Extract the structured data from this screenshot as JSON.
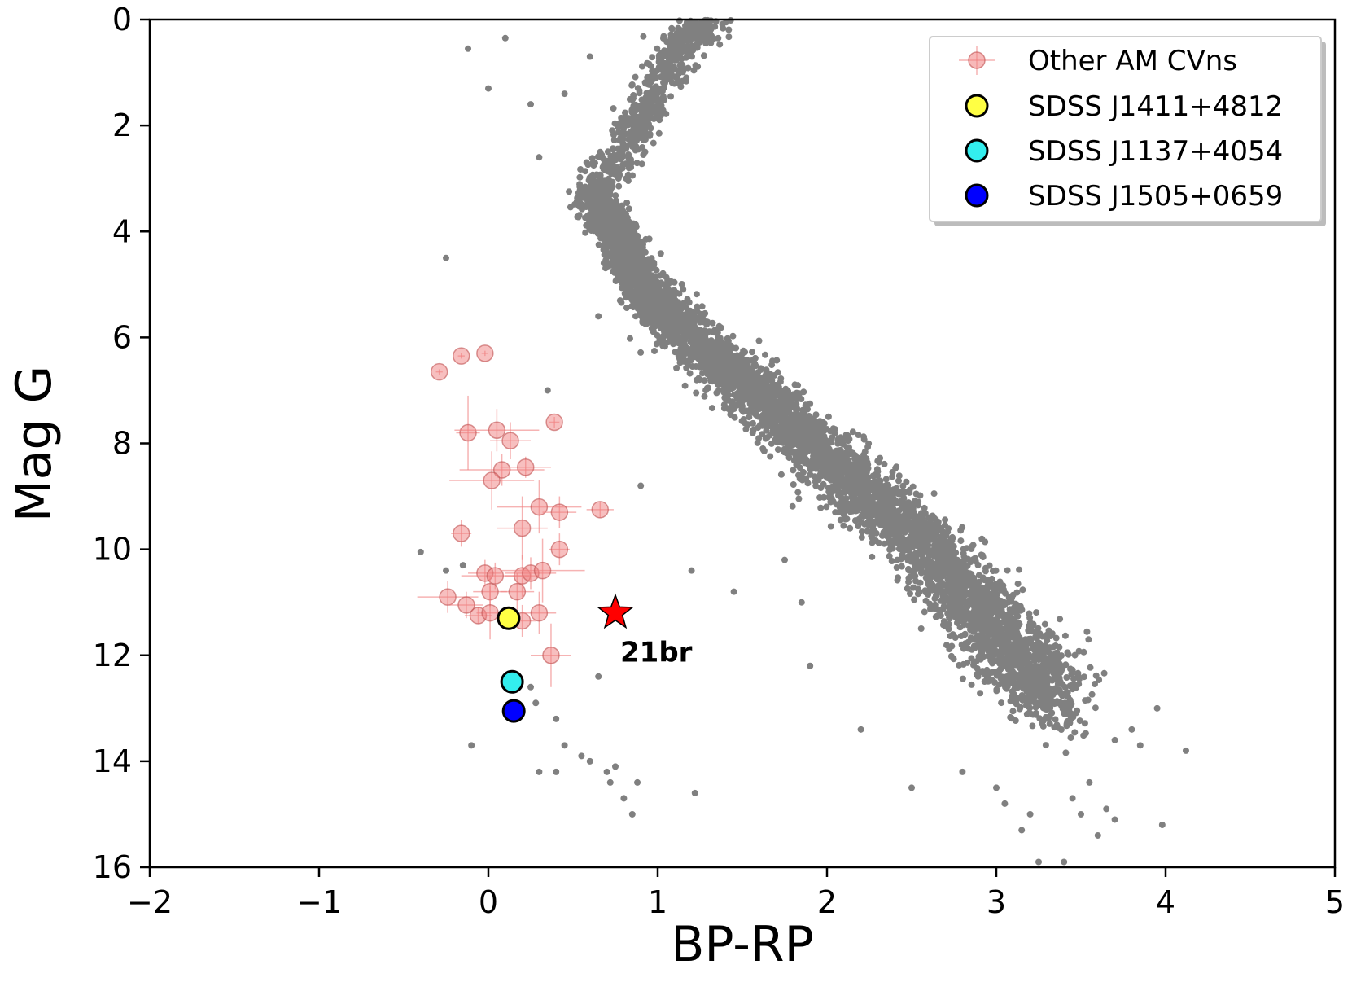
{
  "chart_data": {
    "type": "scatter",
    "xlabel": "BP-RP",
    "ylabel": "Mag G",
    "xlim": [
      -2,
      5
    ],
    "ylim": [
      16,
      0
    ],
    "y_inverted": true,
    "grid": false,
    "x_ticks": [
      "−2",
      "−1",
      "0",
      "1",
      "2",
      "3",
      "4",
      "5"
    ],
    "y_ticks": [
      "0",
      "2",
      "4",
      "6",
      "8",
      "10",
      "12",
      "14",
      "16"
    ],
    "legend_position": "top-right",
    "background_sequence": {
      "color": "#808080",
      "main_sequence_ridge": [
        [
          0.6,
          3.2
        ],
        [
          0.75,
          4.0
        ],
        [
          0.9,
          5.0
        ],
        [
          1.1,
          5.7
        ],
        [
          1.4,
          6.6
        ],
        [
          1.7,
          7.4
        ],
        [
          2.0,
          8.3
        ],
        [
          2.3,
          9.1
        ],
        [
          2.6,
          10.0
        ],
        [
          2.85,
          11.0
        ],
        [
          3.1,
          12.0
        ],
        [
          3.4,
          13.0
        ]
      ],
      "giant_branch": [
        [
          0.62,
          3.3
        ],
        [
          0.85,
          2.2
        ],
        [
          1.0,
          1.2
        ],
        [
          1.15,
          0.4
        ],
        [
          1.3,
          0.0
        ]
      ],
      "isolated_points": [
        [
          -0.12,
          0.55
        ],
        [
          0.1,
          0.35
        ],
        [
          0.0,
          1.3
        ],
        [
          0.45,
          1.4
        ],
        [
          0.6,
          0.7
        ],
        [
          0.25,
          1.6
        ],
        [
          0.3,
          2.6
        ],
        [
          -0.25,
          4.5
        ],
        [
          0.65,
          5.6
        ],
        [
          0.35,
          7.0
        ],
        [
          0.9,
          8.8
        ],
        [
          -0.4,
          10.05
        ],
        [
          -0.15,
          10.3
        ],
        [
          -0.25,
          10.4
        ],
        [
          1.2,
          10.4
        ],
        [
          1.45,
          10.8
        ],
        [
          1.75,
          10.2
        ],
        [
          1.85,
          11.0
        ],
        [
          1.9,
          12.2
        ],
        [
          0.65,
          12.4
        ],
        [
          0.25,
          12.6
        ],
        [
          0.28,
          12.9
        ],
        [
          0.4,
          13.2
        ],
        [
          -0.1,
          13.7
        ],
        [
          0.45,
          13.7
        ],
        [
          0.55,
          13.9
        ],
        [
          0.6,
          14.0
        ],
        [
          0.3,
          14.2
        ],
        [
          0.4,
          14.2
        ],
        [
          0.7,
          14.2
        ],
        [
          0.75,
          14.1
        ],
        [
          0.72,
          14.4
        ],
        [
          0.8,
          14.7
        ],
        [
          0.88,
          14.4
        ],
        [
          0.85,
          15.0
        ],
        [
          1.22,
          14.6
        ],
        [
          2.2,
          13.4
        ],
        [
          2.5,
          14.5
        ],
        [
          2.8,
          14.2
        ],
        [
          3.0,
          14.5
        ],
        [
          3.2,
          15.0
        ],
        [
          3.05,
          14.8
        ],
        [
          3.45,
          14.7
        ],
        [
          3.5,
          15.0
        ],
        [
          3.6,
          15.4
        ],
        [
          3.65,
          14.9
        ],
        [
          3.95,
          13.0
        ],
        [
          3.98,
          15.2
        ],
        [
          4.12,
          13.8
        ],
        [
          3.85,
          13.7
        ],
        [
          3.8,
          13.4
        ],
        [
          3.7,
          13.6
        ],
        [
          3.55,
          14.4
        ],
        [
          3.25,
          15.9
        ],
        [
          3.4,
          15.9
        ],
        [
          3.7,
          15.1
        ],
        [
          3.15,
          15.3
        ]
      ]
    },
    "series": [
      {
        "name": "Other AM CVns",
        "marker": "circle-with-errorbars",
        "color": "#f08080",
        "points": [
          {
            "x": -0.29,
            "y": 6.65,
            "xerr": 0.02,
            "yerr": 0.05
          },
          {
            "x": -0.16,
            "y": 6.35,
            "xerr": 0.02,
            "yerr": 0.05
          },
          {
            "x": -0.02,
            "y": 6.3,
            "xerr": 0.02,
            "yerr": 0.05
          },
          {
            "x": -0.12,
            "y": 7.8,
            "xerr": 0.07,
            "yerr": 0.7
          },
          {
            "x": 0.05,
            "y": 7.75,
            "xerr": 0.25,
            "yerr": 0.4
          },
          {
            "x": 0.13,
            "y": 7.95,
            "xerr": 0.12,
            "yerr": 0.35
          },
          {
            "x": 0.39,
            "y": 7.6,
            "xerr": 0.03,
            "yerr": 0.1
          },
          {
            "x": 0.08,
            "y": 8.5,
            "xerr": 0.25,
            "yerr": 0.3
          },
          {
            "x": 0.22,
            "y": 8.45,
            "xerr": 0.15,
            "yerr": 0.2
          },
          {
            "x": 0.02,
            "y": 8.7,
            "xerr": 0.25,
            "yerr": 0.55
          },
          {
            "x": 0.3,
            "y": 9.2,
            "xerr": 0.25,
            "yerr": 0.5
          },
          {
            "x": 0.42,
            "y": 9.3,
            "xerr": 0.1,
            "yerr": 0.3
          },
          {
            "x": 0.66,
            "y": 9.25,
            "xerr": 0.08,
            "yerr": 0.15
          },
          {
            "x": 0.2,
            "y": 9.6,
            "xerr": 0.15,
            "yerr": 0.6
          },
          {
            "x": -0.16,
            "y": 9.7,
            "xerr": 0.06,
            "yerr": 0.25
          },
          {
            "x": 0.42,
            "y": 10.0,
            "xerr": 0.06,
            "yerr": 0.3
          },
          {
            "x": -0.02,
            "y": 10.45,
            "xerr": 0.1,
            "yerr": 0.25
          },
          {
            "x": 0.04,
            "y": 10.5,
            "xerr": 0.2,
            "yerr": 0.25
          },
          {
            "x": 0.2,
            "y": 10.5,
            "xerr": 0.1,
            "yerr": 0.4
          },
          {
            "x": 0.25,
            "y": 10.45,
            "xerr": 0.15,
            "yerr": 0.3
          },
          {
            "x": 0.32,
            "y": 10.4,
            "xerr": 0.25,
            "yerr": 0.6
          },
          {
            "x": 0.01,
            "y": 10.8,
            "xerr": 0.1,
            "yerr": 0.3
          },
          {
            "x": 0.17,
            "y": 10.8,
            "xerr": 0.1,
            "yerr": 0.35
          },
          {
            "x": -0.24,
            "y": 10.9,
            "xerr": 0.18,
            "yerr": 0.3
          },
          {
            "x": -0.13,
            "y": 11.05,
            "xerr": 0.1,
            "yerr": 0.25
          },
          {
            "x": -0.06,
            "y": 11.25,
            "xerr": 0.08,
            "yerr": 0.15
          },
          {
            "x": 0.01,
            "y": 11.2,
            "xerr": 0.08,
            "yerr": 0.5
          },
          {
            "x": 0.2,
            "y": 11.35,
            "xerr": 0.08,
            "yerr": 0.3
          },
          {
            "x": 0.3,
            "y": 11.2,
            "xerr": 0.1,
            "yerr": 0.4
          },
          {
            "x": 0.37,
            "y": 12.0,
            "xerr": 0.12,
            "yerr": 0.6
          }
        ]
      },
      {
        "name": "SDSS J1411+4812",
        "marker": "circle",
        "color": "#ffff44",
        "points": [
          {
            "x": 0.12,
            "y": 11.3
          }
        ]
      },
      {
        "name": "SDSS J1137+4054",
        "marker": "circle",
        "color": "#33eeee",
        "points": [
          {
            "x": 0.14,
            "y": 12.5
          }
        ]
      },
      {
        "name": "SDSS J1505+0659",
        "marker": "circle",
        "color": "#0000ff",
        "points": [
          {
            "x": 0.15,
            "y": 13.05
          }
        ]
      }
    ],
    "annotations": [
      {
        "label": "21br",
        "x": 0.75,
        "y": 11.2,
        "marker": "star",
        "color": "#ff0000"
      }
    ]
  }
}
